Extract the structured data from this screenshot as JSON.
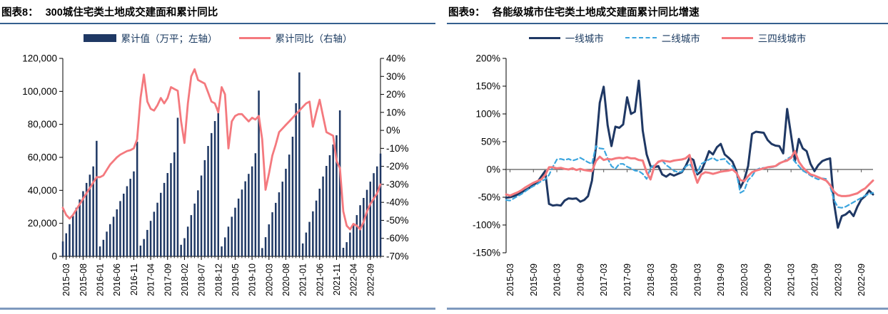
{
  "colors": {
    "navy": "#1F3864",
    "red": "#F4797E",
    "light_blue": "#3BA5DE",
    "title_rule": "#35608F",
    "bottom_rule": "#7E99BE",
    "axis": "#000000",
    "zero_line": "#595959",
    "legend_text": "#17375E"
  },
  "panels": {
    "left": {
      "title_prefix": "图表8：",
      "title": "300城住宅类土地成交建面和累计同比",
      "legend": [
        {
          "label": "累计值（万平；左轴）"
        },
        {
          "label": "累计同比（右轴）"
        }
      ]
    },
    "right": {
      "title_prefix": "图表9：",
      "title": "各能级城市住宅类土地成交建面累计同比增速",
      "legend": [
        {
          "label": "一线城市"
        },
        {
          "label": "二线城市"
        },
        {
          "label": "三四线城市"
        }
      ]
    }
  },
  "chart_data": [
    {
      "id": "left",
      "type": "bar",
      "title": "300城住宅类土地成交建面和累计同比",
      "start_month": "2015-02",
      "x_tick_labels": [
        "2015-03",
        "2015-08",
        "2016-01",
        "2016-06",
        "2016-11",
        "2017-04",
        "2017-09",
        "2018-02",
        "2018-07",
        "2018-12",
        "2019-05",
        "2019-10",
        "2020-03",
        "2020-08",
        "2021-01",
        "2021-06",
        "2021-11",
        "2022-04",
        "2022-09"
      ],
      "x_tick_start_index": 1,
      "x_tick_step": 5,
      "left_axis": {
        "label": "累计值（万平；左轴）",
        "min": 0,
        "max": 120000,
        "tick_labels": [
          "120,000",
          "100,000",
          "80,000",
          "60,000",
          "40,000",
          "20,000",
          "0"
        ]
      },
      "right_axis": {
        "label": "累计同比（右轴）",
        "min": -70,
        "max": 40,
        "tick_labels": [
          "40%",
          "30%",
          "20%",
          "10%",
          "0%",
          "-10%",
          "-20%",
          "-30%",
          "-40%",
          "-50%",
          "-60%",
          "-70%"
        ]
      },
      "bar_series": {
        "name": "累计值（万平；左轴）",
        "values": [
          9000,
          14000,
          19500,
          24500,
          29500,
          34500,
          39500,
          44500,
          49500,
          54500,
          70000,
          6000,
          10000,
          15000,
          19500,
          24000,
          28500,
          33500,
          38000,
          42500,
          47000,
          51500,
          69500,
          6500,
          10500,
          16000,
          21500,
          27000,
          32500,
          38500,
          44500,
          50500,
          56500,
          63000,
          84000,
          7000,
          11000,
          18000,
          25000,
          32000,
          40000,
          49000,
          58300,
          66900,
          74700,
          82000,
          90000,
          6000,
          11500,
          18000,
          24000,
          29500,
          35000,
          40500,
          45500,
          50000,
          54500,
          62500,
          100500,
          5000,
          11600,
          19400,
          26700,
          32400,
          38800,
          45300,
          53100,
          61700,
          72500,
          92800,
          111500,
          7800,
          14400,
          20900,
          27300,
          33800,
          41000,
          48400,
          54800,
          61300,
          67800,
          73400,
          88500,
          5200,
          8600,
          14400,
          19400,
          25000,
          31000,
          35400,
          40300,
          45300,
          50400,
          54500,
          62300
        ]
      },
      "line_series": {
        "name": "累计同比（右轴）",
        "values": [
          -43,
          -47,
          -49,
          -47,
          -44,
          -41,
          -38,
          -35,
          -32,
          -29,
          -26,
          -26,
          -25,
          -22,
          -19,
          -17,
          -15,
          -13.5,
          -12.5,
          -11.5,
          -11,
          -10,
          -5,
          18,
          31,
          16,
          12,
          11,
          14,
          18,
          15,
          18,
          24,
          23,
          22,
          5,
          -7,
          15,
          30,
          34,
          28,
          27,
          26,
          21,
          16,
          15,
          10,
          24,
          20,
          -10,
          5,
          8,
          9,
          9,
          7,
          5,
          7,
          6,
          8,
          -5,
          -33,
          -24,
          -14,
          -8,
          -1,
          1,
          3,
          5,
          7,
          9,
          11,
          13,
          15,
          16,
          2,
          10,
          17,
          8,
          -1,
          -2,
          -3,
          -17,
          -21,
          -45,
          -53,
          -55,
          -52,
          -53,
          -55,
          -51,
          -45,
          -41,
          -38,
          -35,
          -30
        ]
      }
    },
    {
      "id": "right",
      "type": "line",
      "title": "各能级城市住宅类土地成交建面累计同比增速",
      "start_month": "2015-02",
      "x_tick_labels": [
        "2015-03",
        "2015-09",
        "2016-03",
        "2016-09",
        "2017-03",
        "2017-09",
        "2018-03",
        "2018-09",
        "2019-03",
        "2019-09",
        "2020-03",
        "2020-09",
        "2021-03",
        "2021-09",
        "2022-03",
        "2022-09"
      ],
      "x_tick_start_index": 1,
      "x_tick_step": 6,
      "y_axis": {
        "min": -150,
        "max": 200,
        "tick_labels": [
          "200%",
          "150%",
          "100%",
          "50%",
          "0%",
          "-50%",
          "-100%",
          "-150%"
        ]
      },
      "series": [
        {
          "name": "一线城市",
          "style": "solid",
          "color": "#1F3864",
          "values": [
            -51,
            -50,
            -48,
            -45,
            -41,
            -37,
            -33,
            -28,
            -23,
            -13,
            -3,
            -62,
            -65,
            -64,
            -65,
            -56,
            -52,
            -53,
            -52,
            -58,
            -55,
            -48,
            -20,
            40,
            120,
            149,
            80,
            42,
            77,
            75,
            81,
            130,
            100,
            104,
            160,
            70,
            27,
            6,
            4,
            6,
            -9,
            -13,
            -8,
            -11,
            -8,
            -5,
            6,
            21,
            17,
            -9,
            -3,
            14,
            33,
            27,
            40,
            46,
            27,
            21,
            14,
            -3,
            -33,
            -19,
            6,
            64,
            68,
            67,
            66,
            53,
            46,
            43,
            42,
            29,
            109,
            62,
            15,
            55,
            38,
            33,
            10,
            -3,
            8,
            15,
            18,
            20,
            -60,
            -105,
            -84,
            -81,
            -75,
            -84,
            -67,
            -54,
            -48,
            -38,
            -45
          ]
        },
        {
          "name": "二线城市",
          "style": "dashed",
          "color": "#3BA5DE",
          "values": [
            -55,
            -56,
            -52,
            -48,
            -44,
            -39,
            -34,
            -30,
            -26,
            -21,
            -18,
            -10,
            5,
            18,
            19,
            17,
            19,
            16,
            18,
            21,
            17,
            13,
            10,
            42,
            38,
            37,
            20,
            6,
            1,
            10,
            10,
            5,
            2,
            -2,
            -3,
            -8,
            -17,
            3,
            8,
            13,
            16,
            8,
            3,
            -2,
            -5,
            -4,
            5,
            10,
            -1,
            -6,
            10,
            14,
            18,
            21,
            16,
            18,
            19,
            11,
            6,
            -5,
            -42,
            -38,
            -19,
            -12,
            -1,
            2,
            3,
            3,
            4,
            5,
            10,
            14,
            19,
            23,
            14,
            6,
            -2,
            -6,
            -11,
            -15,
            -18,
            -16,
            -17,
            -30,
            -55,
            -68,
            -69,
            -67,
            -63,
            -59,
            -55,
            -51,
            -47,
            -44,
            -42
          ]
        },
        {
          "name": "三四线城市",
          "style": "solid",
          "color": "#F4797E",
          "values": [
            -45,
            -47,
            -44,
            -41,
            -37,
            -32,
            -28,
            -24,
            -21,
            -18,
            -10,
            4,
            4,
            2,
            3,
            1,
            0,
            2,
            -1,
            1,
            -1,
            -2,
            -3,
            15,
            23,
            17,
            19,
            18,
            20,
            21,
            20,
            22,
            20,
            20,
            17,
            16,
            -5,
            -18,
            6,
            14,
            16,
            15,
            14,
            16,
            17,
            18,
            20,
            26,
            -3,
            -24,
            -9,
            -5,
            -6,
            -8,
            -6,
            -4,
            -3,
            -2,
            0,
            -6,
            -19,
            -21,
            -12,
            -5,
            -2,
            0,
            2,
            4,
            5,
            6,
            11,
            14,
            16,
            21,
            33,
            14,
            4,
            -3,
            -9,
            -11,
            -14,
            -17,
            -20,
            -28,
            -40,
            -46,
            -48,
            -48,
            -47,
            -45,
            -43,
            -38,
            -34,
            -27,
            -20
          ]
        }
      ]
    }
  ]
}
